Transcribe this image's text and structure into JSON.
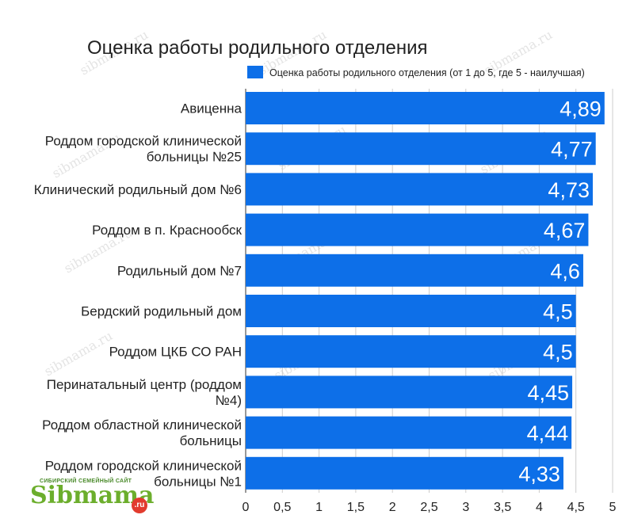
{
  "chart_data": {
    "type": "bar",
    "orientation": "horizontal",
    "title": "Оценка работы родильного отделения",
    "legend": "Оценка работы родильного отделения (от 1 до 5, где 5 - наилучшая)",
    "legend_position": "top-right",
    "categories": [
      [
        "Авиценна"
      ],
      [
        "Роддом городской клинической",
        "больницы №25"
      ],
      [
        "Клинический родильный дом №6"
      ],
      [
        "Роддом в п. Краснообск"
      ],
      [
        "Родильный дом №7"
      ],
      [
        "Бердский родильный дом"
      ],
      [
        "Роддом ЦКБ СО РАН"
      ],
      [
        "Перинатальный центр (роддом",
        "№4)"
      ],
      [
        "Роддом областной клинической",
        "больницы"
      ],
      [
        "Роддом городской клинической",
        "больницы №1"
      ]
    ],
    "values": [
      4.89,
      4.77,
      4.73,
      4.67,
      4.6,
      4.5,
      4.5,
      4.45,
      4.44,
      4.33
    ],
    "value_labels": [
      "4,89",
      "4,77",
      "4,73",
      "4,67",
      "4,6",
      "4,5",
      "4,5",
      "4,45",
      "4,44",
      "4,33"
    ],
    "ticks": [
      0,
      0.5,
      1,
      1.5,
      2,
      2.5,
      3,
      3.5,
      4,
      4.5,
      5
    ],
    "tick_labels": [
      "0",
      "0,5",
      "1",
      "1,5",
      "2",
      "2,5",
      "3",
      "3,5",
      "4",
      "4,5",
      "5"
    ],
    "xlim": [
      0,
      5
    ],
    "grid": true,
    "bar_color": "#0d6fe8"
  },
  "watermark": "sibmama.ru",
  "logo": {
    "small_text": "СИБИРСКИЙ СЕМЕЙНЫЙ САЙТ",
    "name": "Sibmama",
    "suffix": ".ru"
  }
}
